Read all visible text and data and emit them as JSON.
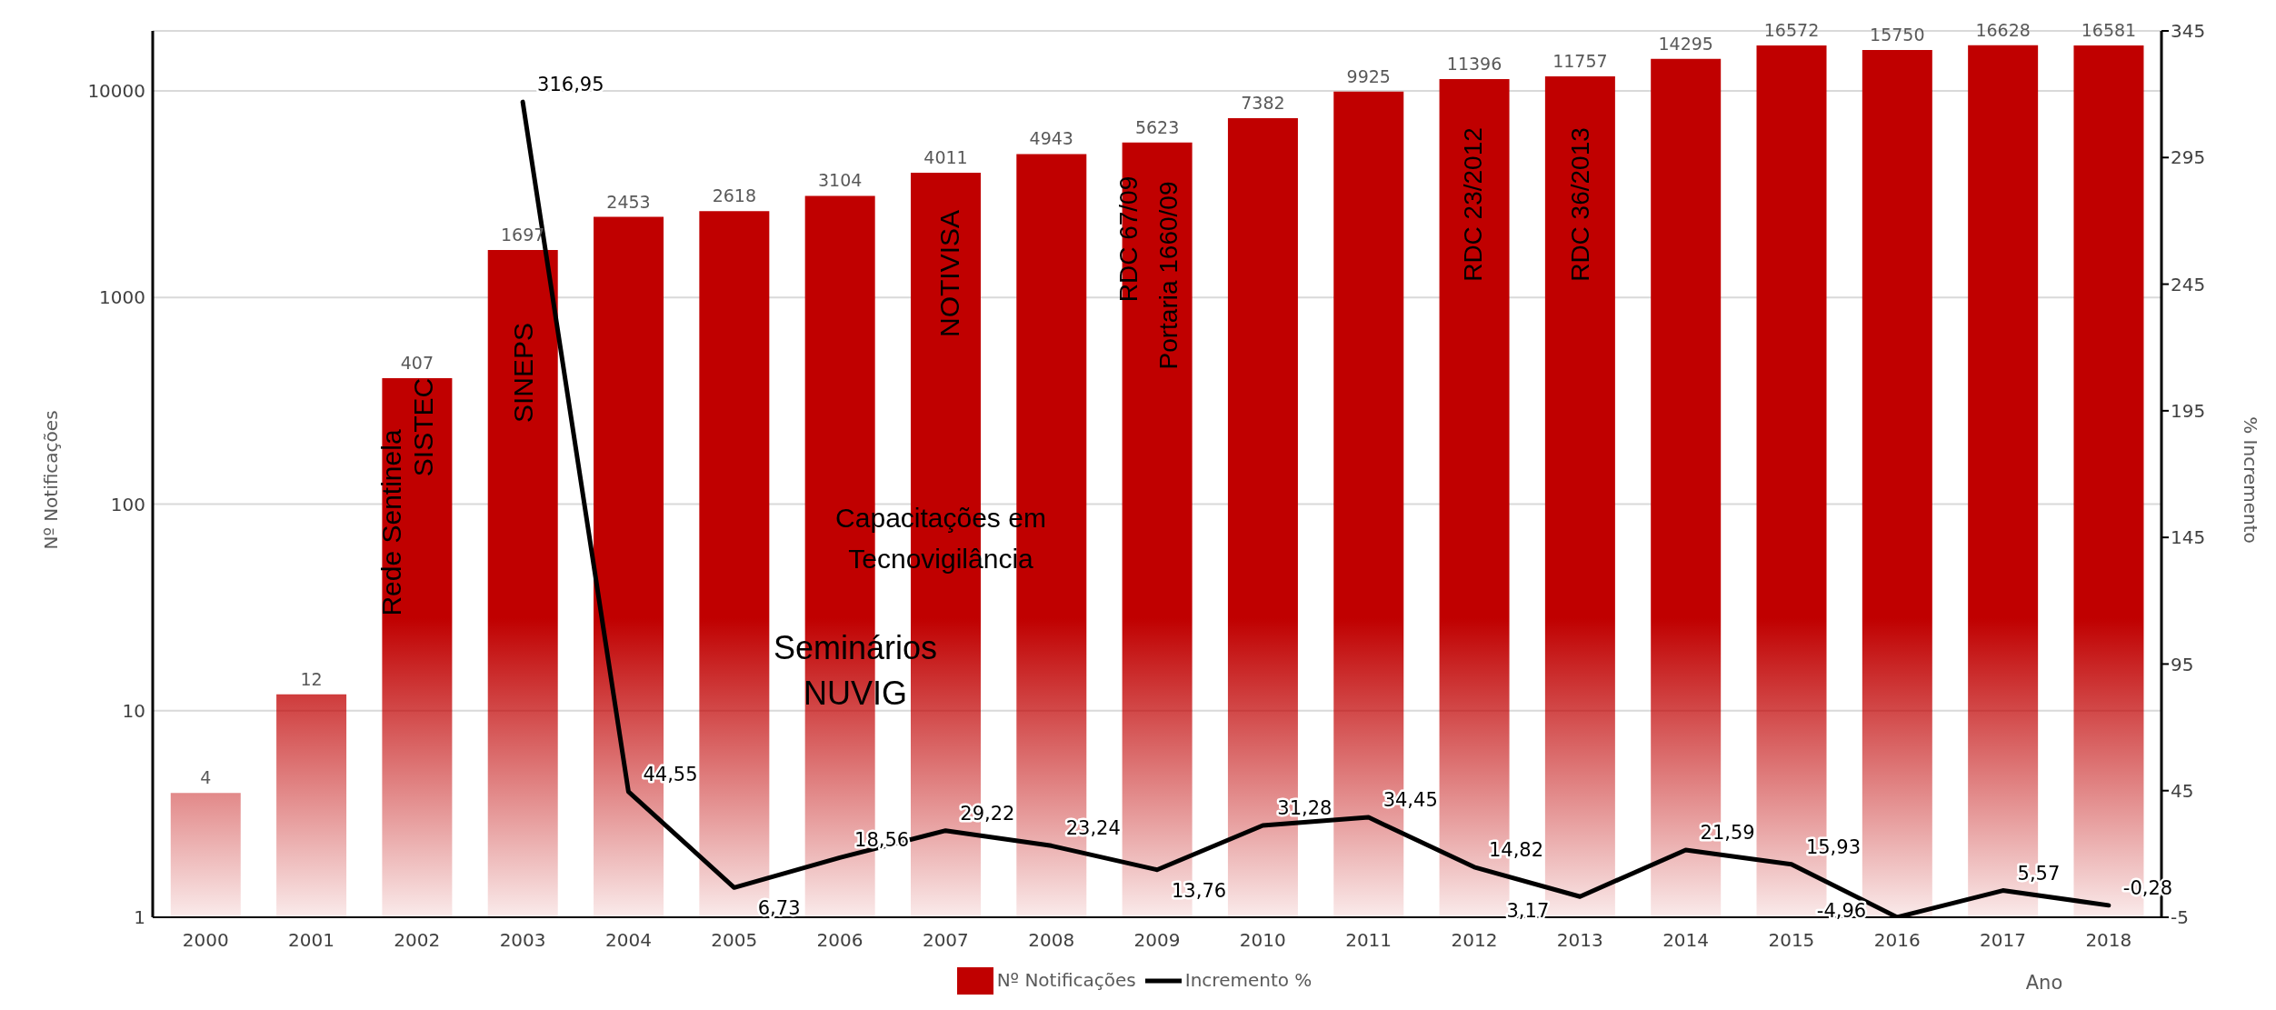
{
  "chart_data": {
    "type": "bar",
    "categories": [
      "2000",
      "2001",
      "2002",
      "2003",
      "2004",
      "2005",
      "2006",
      "2007",
      "2008",
      "2009",
      "2010",
      "2011",
      "2012",
      "2013",
      "2014",
      "2015",
      "2016",
      "2017",
      "2018"
    ],
    "series": [
      {
        "name": "Nº Notificações",
        "color": "#c00000",
        "values": [
          4,
          12,
          407,
          1697,
          2453,
          2618,
          3104,
          4011,
          4943,
          5623,
          7382,
          9925,
          11396,
          11757,
          14295,
          16572,
          15750,
          16628,
          16581
        ]
      },
      {
        "name": "Incremento %",
        "type": "line",
        "axis": "y2",
        "color": "#000000",
        "values": [
          null,
          null,
          null,
          316.95,
          44.55,
          6.73,
          18.56,
          29.22,
          23.24,
          13.76,
          31.28,
          34.45,
          14.82,
          3.17,
          21.59,
          15.93,
          -4.96,
          5.57,
          -0.28
        ],
        "value_labels": [
          null,
          null,
          null,
          "316,95",
          "44,55",
          "6,73",
          "18,56",
          "29,22",
          "23,24",
          "13,76",
          "31,28",
          "34,45",
          "14,82",
          "3,17",
          "21,59",
          "15,93",
          "-4,96",
          "5,57",
          "-0,28"
        ]
      }
    ],
    "log": true,
    "ylim": [
      1,
      19500
    ],
    "yticks": [
      1,
      10,
      100,
      1000,
      10000
    ],
    "y2lim": [
      -5,
      345
    ],
    "y2ticks": [
      -5,
      45,
      95,
      145,
      195,
      245,
      295,
      345
    ],
    "ylabel": "Nº Notificações",
    "y2label": "% Incremento",
    "xlabel": "Ano",
    "grid": "y",
    "legend": "bottom",
    "data_labels": true,
    "marker": "none",
    "line_style": "solid",
    "annotations": [
      "Rede Sentinela",
      "SISTEC",
      "SINEPS",
      "NOTIVISA",
      "RDC 67/09",
      "Portaria 1660/09",
      "RDC 23/2012",
      "RDC 36/2013",
      "Capacitações em",
      "Tecnovigilância",
      "Seminários",
      "NUVIG"
    ]
  }
}
